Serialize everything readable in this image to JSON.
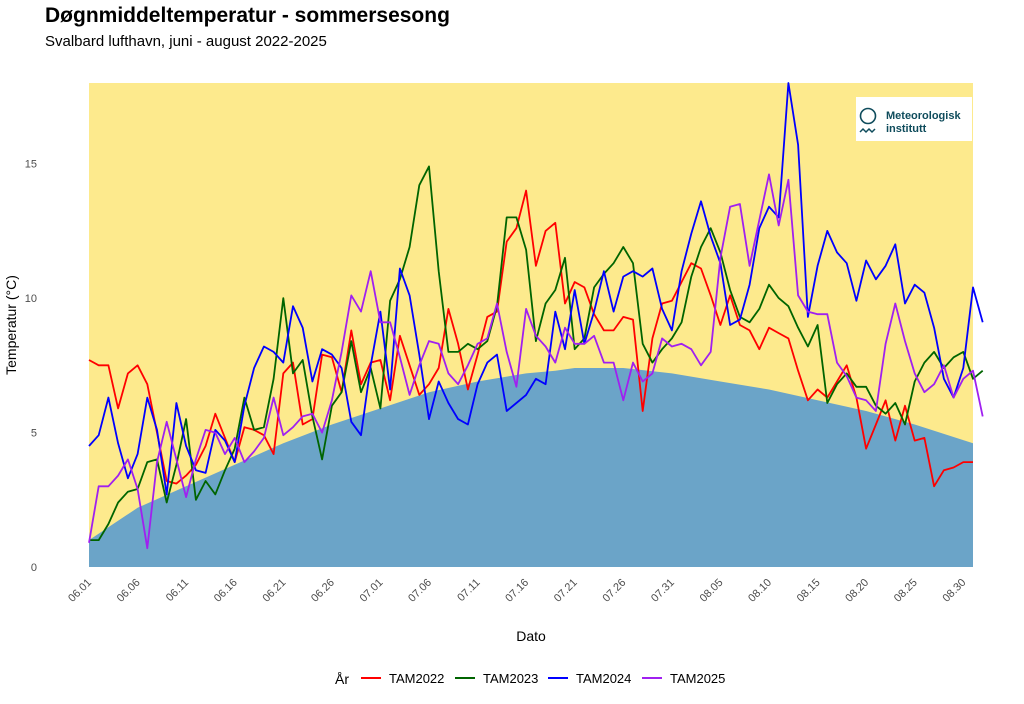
{
  "header": {
    "title": "Døgnmiddeltemperatur - sommersesong",
    "subtitle": "Svalbard lufthavn,  juni - august 2022-2025"
  },
  "logo": {
    "line1": "Meteorologisk",
    "line2": "institutt"
  },
  "chart_data": {
    "type": "line",
    "title": "Døgnmiddeltemperatur - sommersesong",
    "subtitle": "Svalbard lufthavn,  juni - august 2022-2025",
    "xlabel": "Dato",
    "ylabel": "Temperatur (°C)",
    "ylim": [
      0,
      18
    ],
    "yticks": [
      0,
      5,
      10,
      15
    ],
    "xlim_days": [
      0,
      91
    ],
    "xticks": [
      {
        "day": 0,
        "label": "06.01"
      },
      {
        "day": 5,
        "label": "06.06"
      },
      {
        "day": 10,
        "label": "06.11"
      },
      {
        "day": 15,
        "label": "06.16"
      },
      {
        "day": 20,
        "label": "06.21"
      },
      {
        "day": 25,
        "label": "06.26"
      },
      {
        "day": 30,
        "label": "07.01"
      },
      {
        "day": 35,
        "label": "07.06"
      },
      {
        "day": 40,
        "label": "07.11"
      },
      {
        "day": 45,
        "label": "07.16"
      },
      {
        "day": 50,
        "label": "07.21"
      },
      {
        "day": 55,
        "label": "07.26"
      },
      {
        "day": 60,
        "label": "07.31"
      },
      {
        "day": 65,
        "label": "08.05"
      },
      {
        "day": 70,
        "label": "08.10"
      },
      {
        "day": 75,
        "label": "08.15"
      },
      {
        "day": 80,
        "label": "08.20"
      },
      {
        "day": 85,
        "label": "08.25"
      },
      {
        "day": 90,
        "label": "08.30"
      }
    ],
    "background_color": "#fdea8d",
    "normal_area": {
      "color": "#6ba4c8",
      "points": [
        [
          0,
          1.0
        ],
        [
          5,
          2.2
        ],
        [
          10,
          3.0
        ],
        [
          15,
          3.8
        ],
        [
          20,
          4.6
        ],
        [
          25,
          5.3
        ],
        [
          30,
          5.9
        ],
        [
          35,
          6.5
        ],
        [
          40,
          6.9
        ],
        [
          45,
          7.2
        ],
        [
          48,
          7.3
        ],
        [
          50,
          7.4
        ],
        [
          55,
          7.4
        ],
        [
          60,
          7.2
        ],
        [
          65,
          6.9
        ],
        [
          70,
          6.6
        ],
        [
          75,
          6.2
        ],
        [
          80,
          5.8
        ],
        [
          85,
          5.3
        ],
        [
          91,
          4.6
        ]
      ]
    },
    "legend_title": "År",
    "series": [
      {
        "name": "TAM2022",
        "color": "#ff0000",
        "values": [
          7.7,
          7.5,
          7.5,
          5.9,
          7.2,
          7.5,
          6.8,
          5.0,
          3.2,
          3.1,
          3.4,
          3.8,
          4.5,
          5.7,
          4.8,
          3.9,
          5.2,
          5.1,
          4.9,
          4.2,
          7.2,
          7.6,
          5.3,
          5.5,
          7.9,
          7.8,
          6.5,
          8.8,
          6.8,
          7.6,
          7.7,
          6.2,
          8.6,
          7.5,
          6.4,
          6.8,
          7.4,
          9.6,
          8.3,
          6.6,
          7.9,
          9.3,
          9.5,
          12.1,
          12.6,
          14.0,
          11.2,
          12.5,
          12.8,
          9.8,
          10.6,
          10.4,
          9.4,
          8.8,
          8.8,
          9.3,
          9.2,
          5.8,
          8.5,
          9.8,
          9.9,
          10.6,
          11.3,
          11.1,
          10.1,
          9.0,
          10.1,
          9.0,
          8.8,
          8.1,
          8.9,
          8.7,
          8.5,
          7.3,
          6.2,
          6.6,
          6.3,
          6.9,
          7.5,
          6.3,
          4.4,
          5.3,
          6.2,
          4.7,
          6.0,
          4.7,
          4.8,
          3.0,
          3.6,
          3.7,
          3.9,
          3.9
        ]
      },
      {
        "name": "TAM2023",
        "color": "#006400",
        "values": [
          1.0,
          1.0,
          1.6,
          2.4,
          2.8,
          2.9,
          3.9,
          4.0,
          2.4,
          3.8,
          5.5,
          2.5,
          3.2,
          2.7,
          3.6,
          4.4,
          6.3,
          5.1,
          5.2,
          7.0,
          10.0,
          7.2,
          7.7,
          5.6,
          4.0,
          6.0,
          6.5,
          8.4,
          6.5,
          7.4,
          5.9,
          9.9,
          10.7,
          11.9,
          14.2,
          14.9,
          11.0,
          8.0,
          8.0,
          8.3,
          8.1,
          8.4,
          9.7,
          13.0,
          13.0,
          11.8,
          8.4,
          9.8,
          10.3,
          11.5,
          8.1,
          8.5,
          10.4,
          10.9,
          11.3,
          11.9,
          11.3,
          8.3,
          7.6,
          8.1,
          8.5,
          9.1,
          10.8,
          11.9,
          12.6,
          11.7,
          10.3,
          9.3,
          9.1,
          9.6,
          10.5,
          10.0,
          9.7,
          8.9,
          8.2,
          9.0,
          6.1,
          6.8,
          7.2,
          6.7,
          6.7,
          6.0,
          5.7,
          6.1,
          5.3,
          6.9,
          7.6,
          8.0,
          7.4,
          7.8,
          8.0,
          7.0,
          7.3
        ]
      },
      {
        "name": "TAM2024",
        "color": "#0000ff",
        "values": [
          4.5,
          4.9,
          6.3,
          4.6,
          3.3,
          4.2,
          6.3,
          5.1,
          2.7,
          6.1,
          4.5,
          3.6,
          3.5,
          5.1,
          4.7,
          3.9,
          6.0,
          7.4,
          8.2,
          8.0,
          7.6,
          9.7,
          8.9,
          6.9,
          8.1,
          7.9,
          7.4,
          5.4,
          4.9,
          7.5,
          9.5,
          6.6,
          11.1,
          10.1,
          7.9,
          5.5,
          6.9,
          6.1,
          5.5,
          5.3,
          6.8,
          7.6,
          7.9,
          5.8,
          6.1,
          6.4,
          7.0,
          6.8,
          9.5,
          8.1,
          10.3,
          8.3,
          9.5,
          11.0,
          9.5,
          10.8,
          11.0,
          10.8,
          11.1,
          9.6,
          8.8,
          11.0,
          12.4,
          13.6,
          12.3,
          11.3,
          9.0,
          9.2,
          10.5,
          12.6,
          13.4,
          13.0,
          18.0,
          15.7,
          9.3,
          11.2,
          12.5,
          11.7,
          11.3,
          9.9,
          11.4,
          10.7,
          11.2,
          12.0,
          9.8,
          10.5,
          10.2,
          8.9,
          7.0,
          6.3,
          7.4,
          10.4,
          9.1
        ]
      },
      {
        "name": "TAM2025",
        "color": "#a020f0",
        "values": [
          0.9,
          3.0,
          3.0,
          3.4,
          4.0,
          2.9,
          0.7,
          3.9,
          5.4,
          4.0,
          2.6,
          4.0,
          5.1,
          5.0,
          4.2,
          4.8,
          3.9,
          4.3,
          4.8,
          6.3,
          4.9,
          5.2,
          5.6,
          5.7,
          5.0,
          6.2,
          8.0,
          10.1,
          9.5,
          11.0,
          9.1,
          9.1,
          7.8,
          6.4,
          7.5,
          8.4,
          8.3,
          7.2,
          6.8,
          7.5,
          8.3,
          8.5,
          9.8,
          8.0,
          6.7,
          9.6,
          8.6,
          8.2,
          7.6,
          8.9,
          8.3,
          8.3,
          8.6,
          7.6,
          7.6,
          6.2,
          7.6,
          6.9,
          7.2,
          8.5,
          8.2,
          8.3,
          8.1,
          7.5,
          8.0,
          11.5,
          13.4,
          13.5,
          11.2,
          12.9,
          14.6,
          12.7,
          14.4,
          10.1,
          9.5,
          9.4,
          9.4,
          7.6,
          7.1,
          6.3,
          6.2,
          5.8,
          8.3,
          9.8,
          8.4,
          7.2,
          6.5,
          6.8,
          7.5,
          6.3,
          7.0,
          7.3,
          5.6
        ]
      }
    ]
  }
}
